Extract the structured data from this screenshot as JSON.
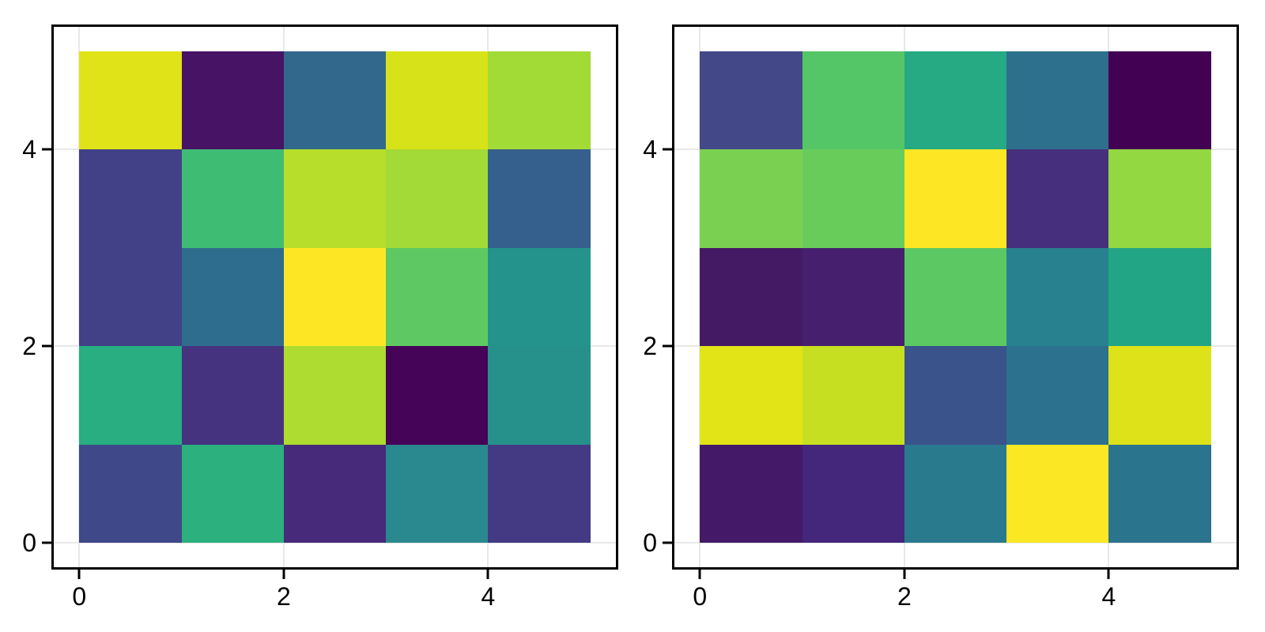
{
  "figure": {
    "background_color": "#ffffff",
    "frame_color": "#000000",
    "grid_color": "#e8e8e8",
    "tick_color": "#000000",
    "tick_label_color": "#000000",
    "title": ""
  },
  "chart_data": [
    {
      "type": "heatmap",
      "panel": "left",
      "colormap": "viridis",
      "grid": true,
      "n_rows": 5,
      "n_cols": 5,
      "x_range": [
        -0.25,
        5.25
      ],
      "y_range": [
        -0.25,
        5.25
      ],
      "data_extent": {
        "x": [
          0,
          5
        ],
        "y": [
          0,
          5
        ]
      },
      "x_tick_values": [
        0,
        2,
        4
      ],
      "x_tick_labels": [
        "0",
        "2",
        "4"
      ],
      "y_tick_values": [
        0,
        2,
        4
      ],
      "y_tick_labels": [
        "0",
        "2",
        "4"
      ],
      "row_order": "top_to_bottom_y4_to_y0",
      "cell_colors_hex": [
        [
          "#dfe318",
          "#471365",
          "#33688d",
          "#d8e219",
          "#a2db36"
        ],
        [
          "#424187",
          "#3fbc73",
          "#b7de2a",
          "#a3da37",
          "#35608d"
        ],
        [
          "#424187",
          "#2e6d8e",
          "#fde725",
          "#5ec962",
          "#24938b"
        ],
        [
          "#28ae80",
          "#46337f",
          "#aedc30",
          "#450457",
          "#26908b"
        ],
        [
          "#3f4889",
          "#2bb07e",
          "#472a7a",
          "#29898e",
          "#443a83"
        ]
      ],
      "cell_values_normalized_est": [
        [
          0.93,
          0.08,
          0.33,
          0.92,
          0.86
        ],
        [
          0.22,
          0.67,
          0.89,
          0.86,
          0.3
        ],
        [
          0.22,
          0.36,
          1.0,
          0.75,
          0.51
        ],
        [
          0.64,
          0.15,
          0.88,
          0.01,
          0.49
        ],
        [
          0.23,
          0.63,
          0.12,
          0.45,
          0.17
        ]
      ]
    },
    {
      "type": "heatmap",
      "panel": "right",
      "colormap": "viridis",
      "grid": true,
      "n_rows": 5,
      "n_cols": 5,
      "x_range": [
        -0.25,
        5.25
      ],
      "y_range": [
        -0.25,
        5.25
      ],
      "data_extent": {
        "x": [
          0,
          5
        ],
        "y": [
          0,
          5
        ]
      },
      "x_tick_values": [
        0,
        2,
        4
      ],
      "x_tick_labels": [
        "0",
        "2",
        "4"
      ],
      "y_tick_values": [
        0,
        2,
        4
      ],
      "y_tick_labels": [
        "0",
        "2",
        "4"
      ],
      "row_order": "top_to_bottom_y4_to_y0",
      "cell_colors_hex": [
        [
          "#424888",
          "#55c667",
          "#25aa83",
          "#2d708e",
          "#430154"
        ],
        [
          "#7ad151",
          "#68cc5b",
          "#fde725",
          "#46307e",
          "#93d741"
        ],
        [
          "#451a65",
          "#46206f",
          "#5bc863",
          "#28818e",
          "#22a585"
        ],
        [
          "#e2e418",
          "#c6e021",
          "#3a538b",
          "#2c718e",
          "#dde318"
        ],
        [
          "#441a68",
          "#44267b",
          "#2a7a8e",
          "#fbe723",
          "#2b748e"
        ]
      ],
      "cell_values_normalized_est": [
        [
          0.22,
          0.73,
          0.62,
          0.37,
          0.0
        ],
        [
          0.8,
          0.77,
          1.0,
          0.14,
          0.84
        ],
        [
          0.07,
          0.1,
          0.74,
          0.44,
          0.6
        ],
        [
          0.95,
          0.91,
          0.25,
          0.36,
          0.94
        ],
        [
          0.08,
          0.12,
          0.41,
          0.99,
          0.39
        ]
      ]
    }
  ]
}
